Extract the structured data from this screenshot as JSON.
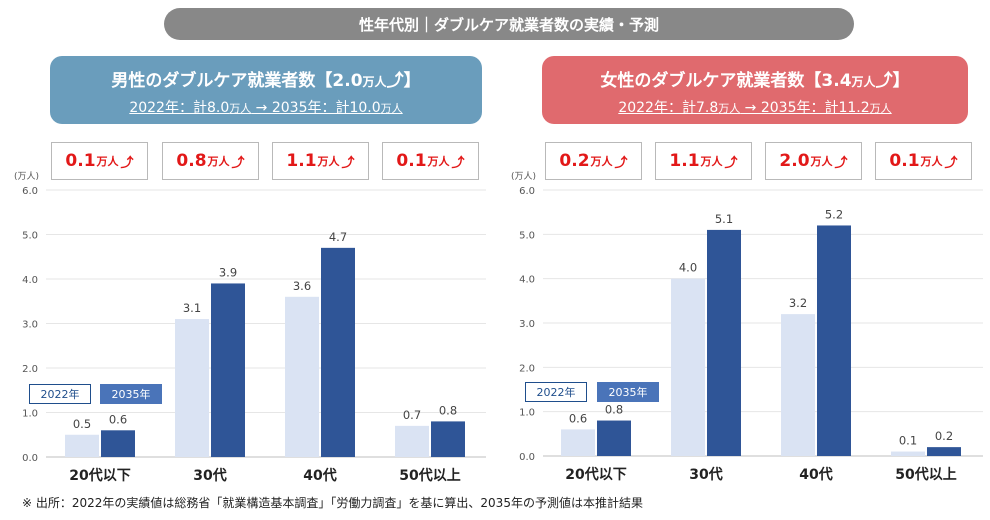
{
  "title": "性年代別｜ダブルケア就業者数の実績・予測",
  "colors": {
    "y2022": "#dae3f3",
    "y2035": "#2f5597",
    "increase": "#e21818",
    "male": "#6a9dbc",
    "female": "#e06a6e"
  },
  "male": {
    "heading": "男性のダブルケア就業者数【",
    "total": "2.0",
    "unit": "万人",
    "arrow": "⤴",
    "close": "】",
    "sub_a": "2022年：計8.0",
    "sub_unit_a": "万人",
    "sub_mid": " → 2035年：計10.0",
    "sub_unit_b": "万人",
    "increases": [
      {
        "value": "0.1",
        "unit": "万人",
        "arrow": "⤴"
      },
      {
        "value": "0.8",
        "unit": "万人",
        "arrow": "⤴"
      },
      {
        "value": "1.1",
        "unit": "万人",
        "arrow": "⤴"
      },
      {
        "value": "0.1",
        "unit": "万人",
        "arrow": "⤴"
      }
    ]
  },
  "female": {
    "heading": "女性のダブルケア就業者数【",
    "total": "3.4",
    "unit": "万人",
    "arrow": "⤴",
    "close": "】",
    "sub_a": "2022年：計7.8",
    "sub_unit_a": "万人",
    "sub_mid": " → 2035年：計11.2",
    "sub_unit_b": "万人",
    "increases": [
      {
        "value": "0.2",
        "unit": "万人",
        "arrow": "⤴"
      },
      {
        "value": "1.1",
        "unit": "万人",
        "arrow": "⤴"
      },
      {
        "value": "2.0",
        "unit": "万人",
        "arrow": "⤴"
      },
      {
        "value": "0.1",
        "unit": "万人",
        "arrow": "⤴"
      }
    ]
  },
  "legend": {
    "a": "2022年",
    "b": "2035年"
  },
  "chart_data": [
    {
      "type": "bar",
      "title": "男性のダブルケア就業者数",
      "ylabel": "(万人)",
      "ylim": [
        0,
        6
      ],
      "yticks": [
        "0.0",
        "1.0",
        "2.0",
        "3.0",
        "4.0",
        "5.0",
        "6.0"
      ],
      "categories": [
        "20代以下",
        "30代",
        "40代",
        "50代以上"
      ],
      "series": [
        {
          "name": "2022年",
          "values": [
            0.5,
            3.1,
            3.6,
            0.7
          ],
          "labels": [
            "0.5",
            "3.1",
            "3.6",
            "0.7"
          ]
        },
        {
          "name": "2035年",
          "values": [
            0.6,
            3.9,
            4.7,
            0.8
          ],
          "labels": [
            "0.6",
            "3.9",
            "4.7",
            "0.8"
          ]
        }
      ]
    },
    {
      "type": "bar",
      "title": "女性のダブルケア就業者数",
      "ylabel": "(万人)",
      "ylim": [
        0,
        6
      ],
      "yticks": [
        "0.0",
        "1.0",
        "2.0",
        "3.0",
        "4.0",
        "5.0",
        "6.0"
      ],
      "categories": [
        "20代以下",
        "30代",
        "40代",
        "50代以上"
      ],
      "series": [
        {
          "name": "2022年",
          "values": [
            0.6,
            4.0,
            3.2,
            0.1
          ],
          "labels": [
            "0.6",
            "4.0",
            "3.2",
            "0.1"
          ]
        },
        {
          "name": "2035年",
          "values": [
            0.8,
            5.1,
            5.2,
            0.2
          ],
          "labels": [
            "0.8",
            "5.1",
            "5.2",
            "0.2"
          ]
        }
      ]
    }
  ],
  "footnote": "※ 出所：2022年の実績値は総務省「就業構造基本調査」「労働力調査」を基に算出、2035年の予測値は本推計結果"
}
